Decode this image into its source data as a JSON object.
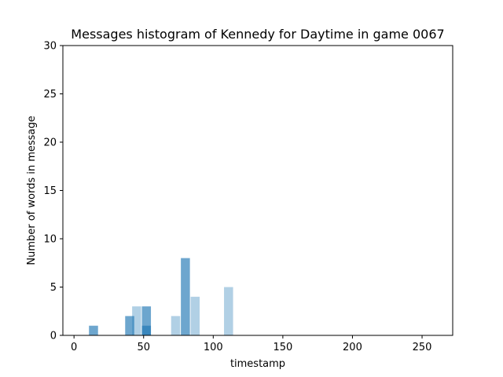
{
  "chart_data": {
    "type": "bar",
    "title": "Messages histogram of Kennedy for Daytime in game 0067",
    "xlabel": "timestamp",
    "ylabel": "Number of words in message",
    "xlim": [
      -8,
      272
    ],
    "ylim": [
      0,
      30
    ],
    "xticks": [
      0,
      50,
      100,
      150,
      200,
      250
    ],
    "yticks": [
      0,
      5,
      10,
      15,
      20,
      25,
      30
    ],
    "grid": false,
    "bar_width": 6.5,
    "series": [
      {
        "color": "#1f77b4",
        "opacity": 0.35,
        "bars": [
          {
            "x": 45,
            "value": 3
          },
          {
            "x": 73,
            "value": 2
          },
          {
            "x": 87,
            "value": 4
          },
          {
            "x": 111,
            "value": 5
          }
        ]
      },
      {
        "color": "#1f77b4",
        "opacity": 0.65,
        "bars": [
          {
            "x": 14,
            "value": 1
          },
          {
            "x": 40,
            "value": 2
          },
          {
            "x": 52,
            "value": 3
          },
          {
            "x": 52,
            "value": 1
          },
          {
            "x": 80,
            "value": 8
          }
        ]
      }
    ]
  }
}
